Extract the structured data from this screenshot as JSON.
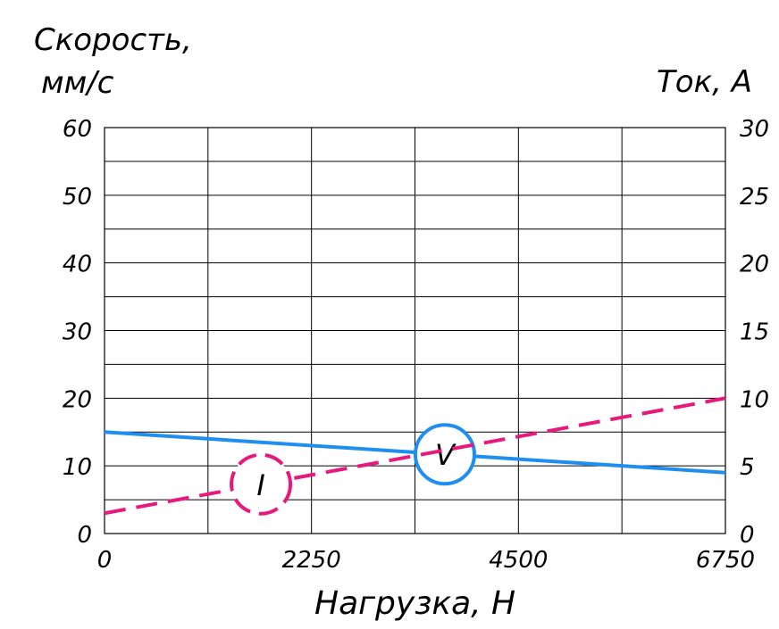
{
  "chart_data": {
    "type": "line",
    "y_left_label": [
      "Скорость,",
      "мм/с"
    ],
    "y_right_label": "Ток, А",
    "xlabel": "Нагрузка, Н",
    "xlim": [
      0,
      6750
    ],
    "ylim_left": [
      0,
      60
    ],
    "ylim_right": [
      0,
      30
    ],
    "x_ticks": [
      "0",
      "2250",
      "4500",
      "6750"
    ],
    "y_left_ticks": [
      "0",
      "10",
      "20",
      "30",
      "40",
      "50",
      "60"
    ],
    "y_right_ticks": [
      "0",
      "5",
      "10",
      "15",
      "20",
      "25",
      "30"
    ],
    "x_ticks_values": [
      0,
      2250,
      4500,
      6750
    ],
    "y_left_tick_values": [
      0,
      10,
      20,
      30,
      40,
      50,
      60
    ],
    "y_right_tick_values": [
      0,
      5,
      10,
      15,
      20,
      25,
      30
    ],
    "grid": true,
    "series": [
      {
        "name": "V",
        "axis": "left",
        "style": "solid",
        "color": "#1f8ef1",
        "x": [
          0,
          6750
        ],
        "y": [
          15,
          9
        ],
        "marker_label_x": 3700
      },
      {
        "name": "I",
        "axis": "right",
        "style": "dashed",
        "color": "#e8197d",
        "x": [
          0,
          6750
        ],
        "y": [
          1.5,
          10
        ],
        "marker_label_x": 1700
      }
    ]
  }
}
